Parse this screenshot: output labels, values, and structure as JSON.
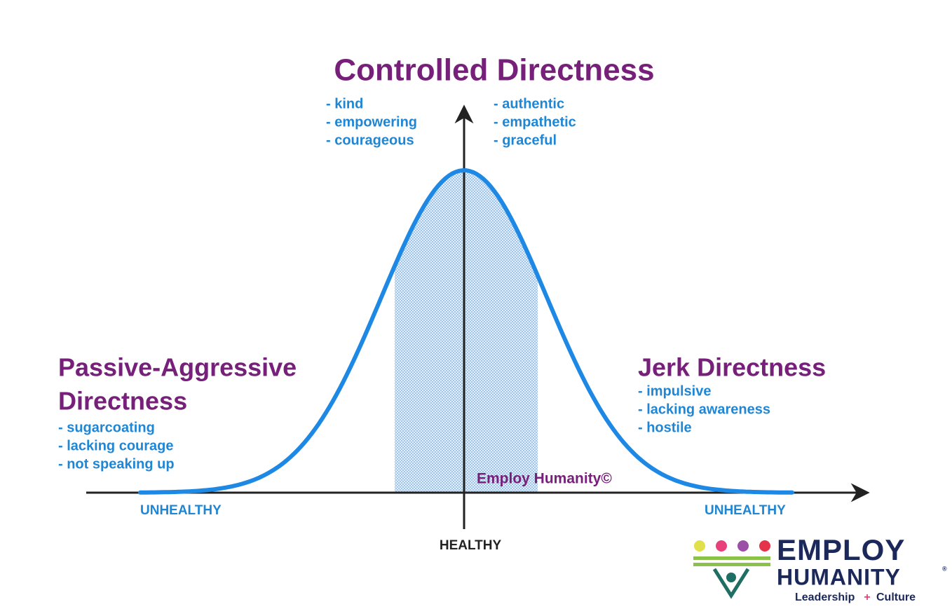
{
  "title": "Controlled Directness",
  "top_left_traits": [
    "- kind",
    "- empowering",
    "- courageous"
  ],
  "top_right_traits": [
    "- authentic",
    "- empathetic",
    "- graceful"
  ],
  "left_heading": [
    "Passive-Aggressive",
    "Directness"
  ],
  "left_traits": [
    "- sugarcoating",
    "- lacking courage",
    "- not speaking up"
  ],
  "right_heading": "Jerk Directness",
  "right_traits": [
    "- impulsive",
    "- lacking awareness",
    "- hostile"
  ],
  "watermark": "Employ Humanity©",
  "axis_labels": {
    "left": "UNHEALTHY",
    "right": "UNHEALTHY",
    "center": "HEALTHY"
  },
  "logo": {
    "line1": "EMPLOY",
    "line2": "HUMANITY",
    "registered": "®",
    "tagline_left": "Leadership",
    "tagline_plus": "+",
    "tagline_right": "Culture"
  }
}
